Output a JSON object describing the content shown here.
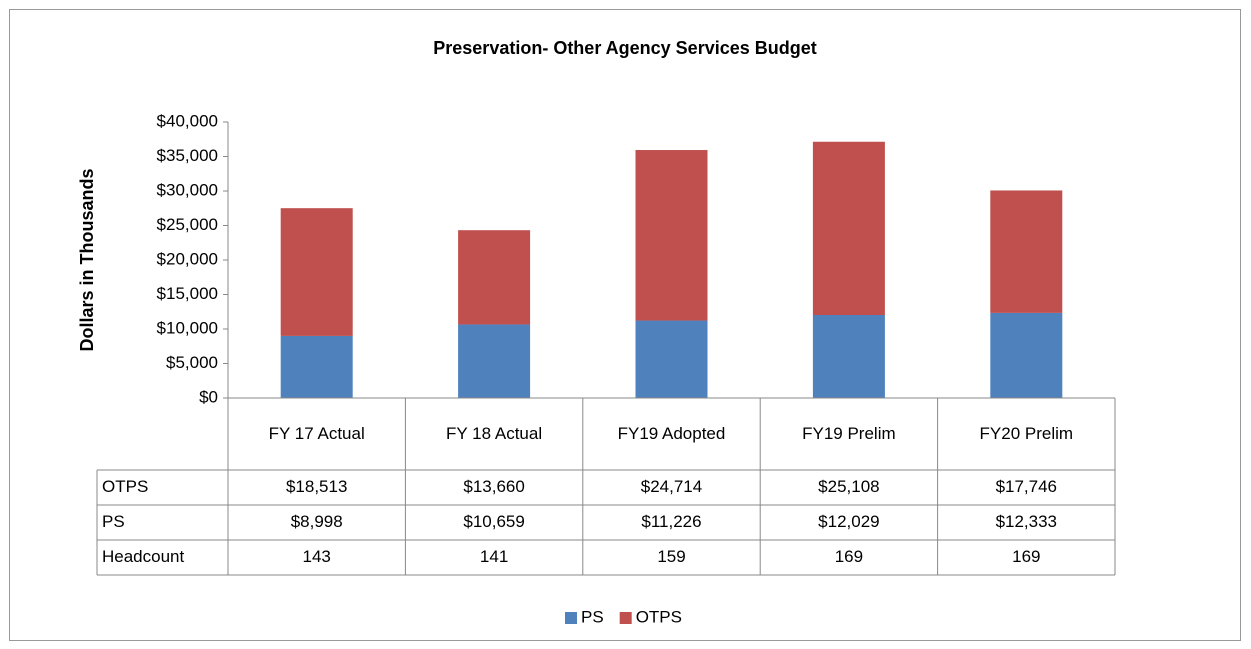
{
  "chart_data": {
    "type": "bar",
    "stacked": true,
    "title": "Preservation- Other Agency Services Budget",
    "y_label": "Dollars in Thousands",
    "categories": [
      "FY 17 Actual",
      "FY 18 Actual",
      "FY19 Adopted",
      "FY19 Prelim",
      "FY20 Prelim"
    ],
    "series": [
      {
        "name": "PS",
        "color": "#4f81bd",
        "values": [
          8998,
          10659,
          11226,
          12029,
          12333
        ],
        "value_labels": [
          "$8,998",
          "$10,659",
          "$11,226",
          "$12,029",
          "$12,333"
        ]
      },
      {
        "name": "OTPS",
        "color": "#c0504d",
        "values": [
          18513,
          13660,
          24714,
          25108,
          17746
        ],
        "value_labels": [
          "$18,513",
          "$13,660",
          "$24,714",
          "$25,108",
          "$17,746"
        ]
      }
    ],
    "table_rows": [
      {
        "name": "Headcount",
        "values": [
          143,
          141,
          159,
          169,
          169
        ]
      }
    ],
    "ylim": [
      0,
      40000
    ],
    "yticks": [
      {
        "value": 0,
        "label": "$0"
      },
      {
        "value": 5000,
        "label": "$5,000"
      },
      {
        "value": 10000,
        "label": "$10,000"
      },
      {
        "value": 15000,
        "label": "$15,000"
      },
      {
        "value": 20000,
        "label": "$20,000"
      },
      {
        "value": 25000,
        "label": "$25,000"
      },
      {
        "value": 30000,
        "label": "$30,000"
      },
      {
        "value": 35000,
        "label": "$35,000"
      },
      {
        "value": 40000,
        "label": "$40,000"
      }
    ],
    "grid": false,
    "legend": "bottom"
  }
}
